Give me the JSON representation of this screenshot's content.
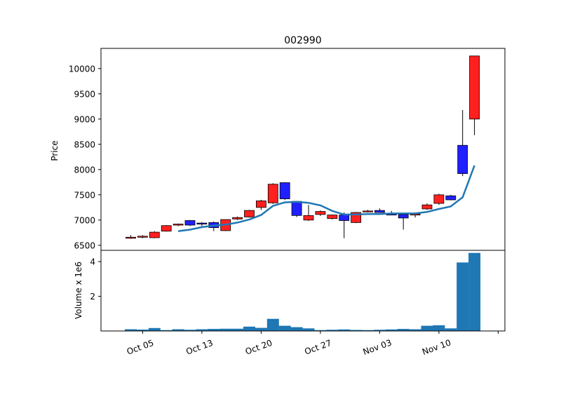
{
  "chart_data": {
    "type": "candlestick",
    "title": "002990",
    "price_panel": {
      "ylabel": "Price",
      "ylim": [
        6400,
        10400
      ],
      "yticks": [
        6500,
        7000,
        7500,
        8000,
        8500,
        9000,
        9500,
        10000
      ],
      "moving_average_color": "#1f77b4",
      "up_color": "#ff2020",
      "down_color": "#2020ff"
    },
    "volume_panel": {
      "ylabel": "Volume x 1e6",
      "ylim": [
        0,
        4.65
      ],
      "yticks": [
        2,
        4
      ],
      "bar_color": "#1f77b4"
    },
    "xtick_labels": [
      "Oct 05",
      "Oct 13",
      "Oct 20",
      "Oct 27",
      "Nov 03",
      "Nov 10",
      ""
    ],
    "xtick_index": [
      1,
      6,
      11,
      16,
      21,
      26,
      31
    ],
    "candles": [
      {
        "open": 6650,
        "high": 6700,
        "low": 6630,
        "close": 6660,
        "volume": 0.1
      },
      {
        "open": 6660,
        "high": 6700,
        "low": 6640,
        "close": 6680,
        "volume": 0.08
      },
      {
        "open": 6650,
        "high": 6780,
        "low": 6640,
        "close": 6760,
        "volume": 0.17
      },
      {
        "open": 6780,
        "high": 6900,
        "low": 6770,
        "close": 6890,
        "volume": 0.05
      },
      {
        "open": 6900,
        "high": 6930,
        "low": 6880,
        "close": 6920,
        "volume": 0.1
      },
      {
        "open": 6990,
        "high": 7000,
        "low": 6880,
        "close": 6900,
        "volume": 0.07
      },
      {
        "open": 6940,
        "high": 6960,
        "low": 6880,
        "close": 6920,
        "volume": 0.1
      },
      {
        "open": 6950,
        "high": 6970,
        "low": 6780,
        "close": 6850,
        "volume": 0.12
      },
      {
        "open": 6790,
        "high": 7010,
        "low": 6780,
        "close": 7010,
        "volume": 0.13
      },
      {
        "open": 7020,
        "high": 7070,
        "low": 7000,
        "close": 7050,
        "volume": 0.13
      },
      {
        "open": 7060,
        "high": 7200,
        "low": 7050,
        "close": 7190,
        "volume": 0.25
      },
      {
        "open": 7250,
        "high": 7400,
        "low": 7200,
        "close": 7380,
        "volume": 0.18
      },
      {
        "open": 7340,
        "high": 7730,
        "low": 7320,
        "close": 7710,
        "volume": 0.7
      },
      {
        "open": 7740,
        "high": 7750,
        "low": 7400,
        "close": 7420,
        "volume": 0.3
      },
      {
        "open": 7370,
        "high": 7370,
        "low": 7060,
        "close": 7090,
        "volume": 0.22
      },
      {
        "open": 7000,
        "high": 7300,
        "low": 6980,
        "close": 7090,
        "volume": 0.15
      },
      {
        "open": 7110,
        "high": 7190,
        "low": 7080,
        "close": 7170,
        "volume": 0.05
      },
      {
        "open": 7030,
        "high": 7110,
        "low": 7010,
        "close": 7100,
        "volume": 0.07
      },
      {
        "open": 7100,
        "high": 7150,
        "low": 6640,
        "close": 6990,
        "volume": 0.09
      },
      {
        "open": 6950,
        "high": 7160,
        "low": 6940,
        "close": 7150,
        "volume": 0.06
      },
      {
        "open": 7160,
        "high": 7200,
        "low": 7150,
        "close": 7180,
        "volume": 0.05
      },
      {
        "open": 7190,
        "high": 7230,
        "low": 7150,
        "close": 7150,
        "volume": 0.07
      },
      {
        "open": 7120,
        "high": 7180,
        "low": 7100,
        "close": 7110,
        "volume": 0.09
      },
      {
        "open": 7110,
        "high": 7120,
        "low": 6810,
        "close": 7040,
        "volume": 0.12
      },
      {
        "open": 7120,
        "high": 7150,
        "low": 7050,
        "close": 7120,
        "volume": 0.1
      },
      {
        "open": 7220,
        "high": 7330,
        "low": 7200,
        "close": 7300,
        "volume": 0.3
      },
      {
        "open": 7330,
        "high": 7520,
        "low": 7300,
        "close": 7500,
        "volume": 0.33
      },
      {
        "open": 7480,
        "high": 7500,
        "low": 7390,
        "close": 7400,
        "volume": 0.15
      },
      {
        "open": 8480,
        "high": 9180,
        "low": 7870,
        "close": 7920,
        "volume": 3.95
      },
      {
        "open": 9000,
        "high": 10250,
        "low": 8680,
        "close": 10250,
        "volume": 4.5
      }
    ],
    "moving_average": [
      {
        "index": 4,
        "value": 6780
      },
      {
        "index": 5,
        "value": 6810
      },
      {
        "index": 6,
        "value": 6860
      },
      {
        "index": 7,
        "value": 6890
      },
      {
        "index": 8,
        "value": 6910
      },
      {
        "index": 9,
        "value": 6950
      },
      {
        "index": 10,
        "value": 7010
      },
      {
        "index": 11,
        "value": 7100
      },
      {
        "index": 12,
        "value": 7280
      },
      {
        "index": 13,
        "value": 7350
      },
      {
        "index": 14,
        "value": 7360
      },
      {
        "index": 15,
        "value": 7340
      },
      {
        "index": 16,
        "value": 7290
      },
      {
        "index": 17,
        "value": 7180
      },
      {
        "index": 18,
        "value": 7110
      },
      {
        "index": 19,
        "value": 7110
      },
      {
        "index": 20,
        "value": 7120
      },
      {
        "index": 21,
        "value": 7120
      },
      {
        "index": 22,
        "value": 7130
      },
      {
        "index": 23,
        "value": 7130
      },
      {
        "index": 24,
        "value": 7130
      },
      {
        "index": 25,
        "value": 7160
      },
      {
        "index": 26,
        "value": 7220
      },
      {
        "index": 27,
        "value": 7270
      },
      {
        "index": 28,
        "value": 7450
      },
      {
        "index": 29,
        "value": 8080
      }
    ]
  }
}
